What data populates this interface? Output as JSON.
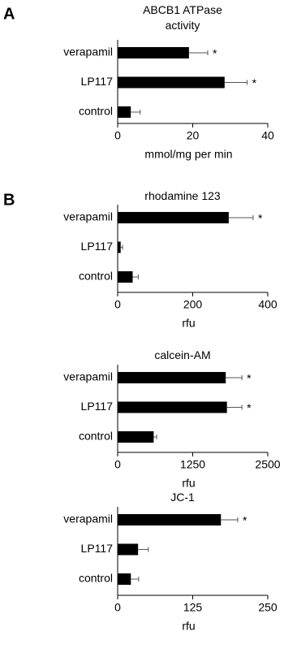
{
  "chart_data": [
    {
      "type": "bar",
      "orientation": "horizontal",
      "panel": "A",
      "title": "ABCB1 ATPase activity",
      "xlabel": "mmol/mg per min",
      "categories": [
        "verapamil",
        "LP117",
        "control"
      ],
      "values": [
        19,
        28.5,
        3.5
      ],
      "errors": [
        5,
        6,
        2.5
      ],
      "markers": [
        "*",
        "*",
        null
      ],
      "xlim": [
        0,
        40
      ],
      "xticks": [
        0,
        20,
        40
      ],
      "color": "#000000"
    },
    {
      "type": "bar",
      "orientation": "horizontal",
      "panel": "B",
      "title": "rhodamine 123",
      "xlabel": "rfu",
      "categories": [
        "verapamil",
        "LP117",
        "control"
      ],
      "values": [
        296,
        8,
        40
      ],
      "errors": [
        65,
        5,
        15
      ],
      "markers": [
        "*",
        null,
        null
      ],
      "xlim": [
        0,
        400
      ],
      "xticks": [
        0,
        200,
        400
      ],
      "color": "#000000"
    },
    {
      "type": "bar",
      "orientation": "horizontal",
      "title": "calcein-AM",
      "xlabel": "rfu",
      "categories": [
        "verapamil",
        "LP117",
        "control"
      ],
      "values": [
        1800,
        1820,
        600
      ],
      "errors": [
        270,
        250,
        50
      ],
      "markers": [
        "*",
        "*",
        null
      ],
      "xlim": [
        0,
        2500
      ],
      "xticks": [
        0,
        1250,
        2500
      ],
      "color": "#000000"
    },
    {
      "type": "bar",
      "orientation": "horizontal",
      "title": "JC-1",
      "xlabel": "rfu",
      "categories": [
        "verapamil",
        "LP117",
        "control"
      ],
      "values": [
        172,
        34,
        22
      ],
      "errors": [
        28,
        17,
        13
      ],
      "markers": [
        "*",
        null,
        null
      ],
      "xlim": [
        0,
        250
      ],
      "xticks": [
        0,
        125,
        250
      ],
      "color": "#000000"
    }
  ]
}
